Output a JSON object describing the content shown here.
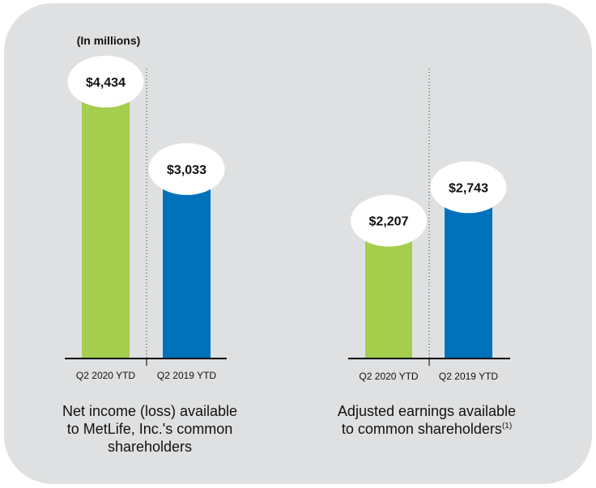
{
  "unit_label": "(In millions)",
  "colors": {
    "panel": "#dfe0e1",
    "green": "#a5cd4e",
    "blue": "#0072bc",
    "bubble": "#ffffff",
    "axis": "#000000"
  },
  "chart_data": [
    {
      "type": "bar",
      "title": "Net income (loss) available to MetLife, Inc.'s common shareholders",
      "title_lines": [
        "Net income (loss) available",
        "to MetLife, Inc.'s common",
        "shareholders"
      ],
      "categories": [
        "Q2 2020 YTD",
        "Q2 2019 YTD"
      ],
      "values": [
        4434,
        3033
      ],
      "labels": [
        "$4,434",
        "$3,033"
      ],
      "ylim": [
        0,
        4600
      ],
      "unit": "(In millions)"
    },
    {
      "type": "bar",
      "title": "Adjusted earnings available to common shareholders",
      "title_lines": [
        "Adjusted earnings available",
        "to common shareholders"
      ],
      "footnote": "(1)",
      "categories": [
        "Q2 2020 YTD",
        "Q2 2019 YTD"
      ],
      "values": [
        2207,
        2743
      ],
      "labels": [
        "$2,207",
        "$2,743"
      ],
      "ylim": [
        0,
        4600
      ]
    }
  ]
}
